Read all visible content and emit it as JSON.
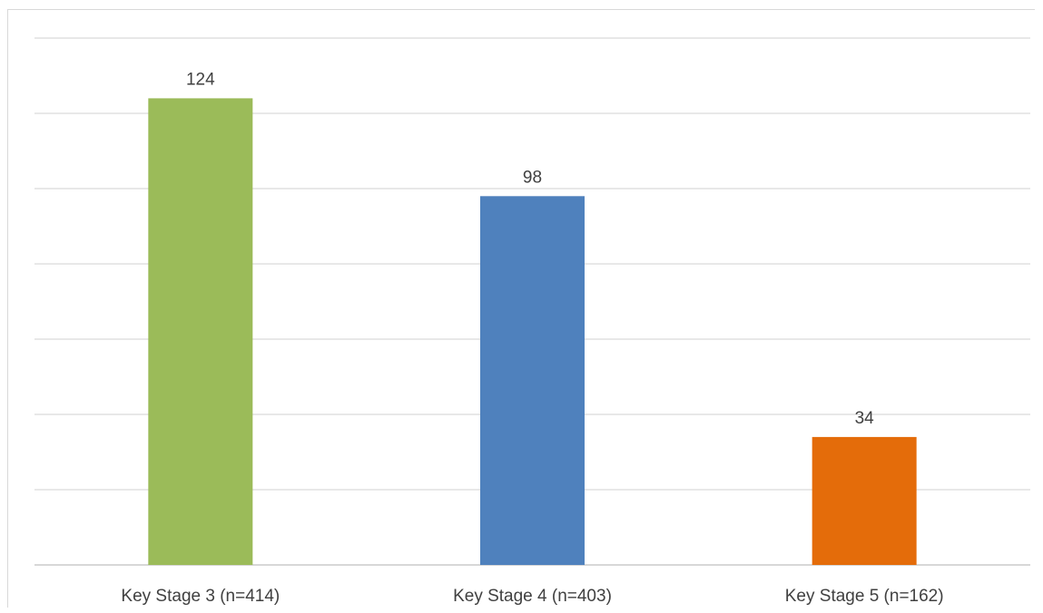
{
  "chart_data": {
    "type": "bar",
    "categories": [
      "Key Stage 3 (n=414)",
      "Key Stage 4 (n=403)",
      "Key Stage 5 (n=162)"
    ],
    "values": [
      124,
      98,
      34
    ],
    "colors": [
      "#9bbb59",
      "#4f81bd",
      "#e46c0a"
    ],
    "ylim": [
      0,
      140
    ],
    "grid": true,
    "gridline_step": 20,
    "data_labels": true,
    "title": "",
    "xlabel": "",
    "ylabel": ""
  }
}
